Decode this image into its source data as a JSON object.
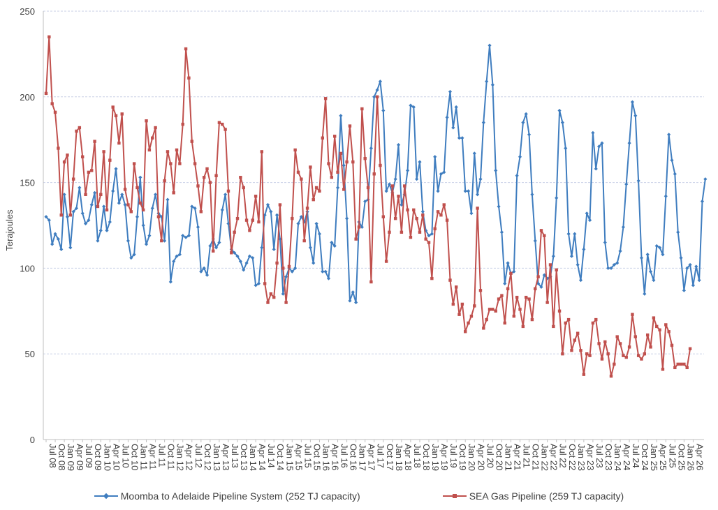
{
  "colors": {
    "moomba": "#3f7dbf",
    "sea": "#c0504d",
    "grid": "#c8cfe6",
    "axis": "#bfbfbf",
    "text": "#404040"
  },
  "chart_data": {
    "type": "line",
    "ylabel": "Terajoules",
    "ylim": [
      0,
      250
    ],
    "yticks": [
      0,
      50,
      100,
      150,
      200,
      250
    ],
    "x_start": "Jul 08",
    "x_tick_labels": [
      "Jul 08",
      "Oct 08",
      "Jan 09",
      "Apr 09",
      "Jul 09",
      "Oct 09",
      "Jan 10",
      "Apr 10",
      "Jul 10",
      "Oct 10",
      "Jan 11",
      "Apr 11",
      "Jul 11",
      "Oct 11",
      "Jan 12",
      "Apr 12",
      "Jul 12",
      "Oct 12",
      "Jan 13",
      "Apr 13",
      "Jul 13",
      "Oct 13",
      "Jan 14",
      "Apr 14",
      "Jul 14",
      "Oct 14",
      "Jan 15",
      "Apr 15",
      "Jul 15",
      "Oct 15",
      "Jan 16",
      "Apr 16",
      "Jul 16",
      "Oct 16",
      "Jan 17",
      "Apr 17",
      "Jul 17",
      "Oct 17",
      "Jan 18",
      "Apr 18",
      "Jul 18",
      "Oct 18",
      "Jan 19",
      "Apr 19",
      "Jul 19",
      "Oct 19",
      "Jan 20",
      "Apr 20",
      "Jul 20",
      "Oct 20",
      "Jan 21",
      "Apr 21",
      "Jul 21",
      "Oct 21",
      "Jan 22",
      "Apr 22",
      "Jul 22",
      "Oct 22",
      "Jan 23",
      "Apr 23",
      "Jul 23",
      "Oct 23",
      "Jan 24",
      "Apr 24",
      "Jul 24",
      "Oct 24",
      "Jan 25",
      "Apr 25",
      "Jul 25",
      "Oct 25",
      "Jan 26",
      "Apr 26"
    ],
    "grid": true,
    "legend_position": "bottom",
    "series": [
      {
        "name": "Moomba to Adelaide Pipeline System (252 TJ capacity)",
        "color": "#3f7dbf",
        "marker": "diamond",
        "values": [
          130,
          128,
          114,
          120,
          117,
          111,
          143,
          130,
          112,
          133,
          135,
          147,
          132,
          126,
          128,
          137,
          144,
          116,
          122,
          136,
          122,
          127,
          145,
          158,
          138,
          143,
          137,
          116,
          106,
          108,
          130,
          153,
          125,
          114,
          119,
          135,
          143,
          132,
          130,
          116,
          140,
          92,
          104,
          107,
          108,
          119,
          118,
          119,
          136,
          135,
          124,
          98,
          100,
          96,
          113,
          117,
          112,
          115,
          134,
          143,
          126,
          111,
          109,
          107,
          104,
          99,
          103,
          107,
          106,
          90,
          91,
          112,
          131,
          137,
          133,
          111,
          131,
          117,
          85,
          95,
          100,
          98,
          100,
          126,
          130,
          127,
          133,
          112,
          103,
          126,
          120,
          98,
          98,
          94,
          115,
          113,
          147,
          189,
          160,
          129,
          81,
          86,
          80,
          127,
          124,
          139,
          140,
          170,
          200,
          204,
          209,
          192,
          145,
          149,
          144,
          152,
          172,
          137,
          143,
          157,
          195,
          194,
          152,
          162,
          133,
          122,
          119,
          120,
          165,
          145,
          155,
          156,
          188,
          203,
          182,
          194,
          176,
          176,
          145,
          145,
          132,
          167,
          143,
          152,
          185,
          209,
          230,
          207,
          157,
          136,
          121,
          91,
          103,
          97,
          98,
          154,
          165,
          185,
          190,
          178,
          143,
          116,
          91,
          89,
          96,
          94,
          95,
          107,
          141,
          192,
          185,
          170,
          120,
          107,
          120,
          102,
          93,
          111,
          132,
          128,
          179,
          158,
          171,
          173,
          115,
          100,
          100,
          102,
          103,
          110,
          124,
          149,
          173,
          197,
          189,
          151,
          106,
          85,
          108,
          98,
          93,
          113,
          112,
          108,
          142,
          178,
          163,
          155,
          121,
          106,
          87,
          100,
          102,
          90,
          101,
          93,
          139,
          152
        ]
      },
      {
        "name": "SEA Gas Pipeline (259 TJ capacity)",
        "color": "#c0504d",
        "marker": "square",
        "values": [
          202,
          235,
          196,
          191,
          170,
          131,
          162,
          166,
          131,
          152,
          180,
          182,
          165,
          143,
          156,
          157,
          174,
          136,
          143,
          168,
          134,
          163,
          194,
          189,
          173,
          190,
          146,
          137,
          133,
          161,
          147,
          138,
          134,
          186,
          169,
          176,
          182,
          130,
          116,
          151,
          168,
          161,
          144,
          169,
          161,
          184,
          228,
          211,
          174,
          161,
          148,
          133,
          153,
          158,
          150,
          110,
          154,
          185,
          184,
          181,
          145,
          109,
          121,
          129,
          153,
          147,
          128,
          122,
          128,
          142,
          127,
          168,
          91,
          80,
          85,
          83,
          103,
          137,
          100,
          80,
          101,
          129,
          169,
          156,
          152,
          116,
          135,
          159,
          140,
          147,
          145,
          176,
          199,
          161,
          153,
          177,
          156,
          167,
          146,
          162,
          183,
          162,
          117,
          124,
          193,
          164,
          147,
          92,
          155,
          200,
          160,
          130,
          104,
          121,
          148,
          129,
          142,
          121,
          148,
          134,
          118,
          134,
          129,
          121,
          131,
          117,
          115,
          94,
          123,
          133,
          131,
          137,
          128,
          93,
          79,
          89,
          73,
          79,
          63,
          68,
          72,
          78,
          135,
          87,
          65,
          70,
          76,
          76,
          75,
          82,
          84,
          68,
          88,
          97,
          72,
          83,
          76,
          66,
          83,
          82,
          70,
          88,
          95,
          122,
          119,
          80,
          102,
          66,
          99,
          75,
          50,
          68,
          70,
          52,
          58,
          62,
          52,
          38,
          50,
          49,
          68,
          70,
          56,
          47,
          57,
          50,
          37,
          44,
          60,
          56,
          49,
          48,
          54,
          73,
          60,
          49,
          47,
          50,
          61,
          54,
          71,
          66,
          64,
          41,
          67,
          63,
          55,
          42,
          44,
          44,
          44,
          42,
          53
        ]
      }
    ]
  }
}
